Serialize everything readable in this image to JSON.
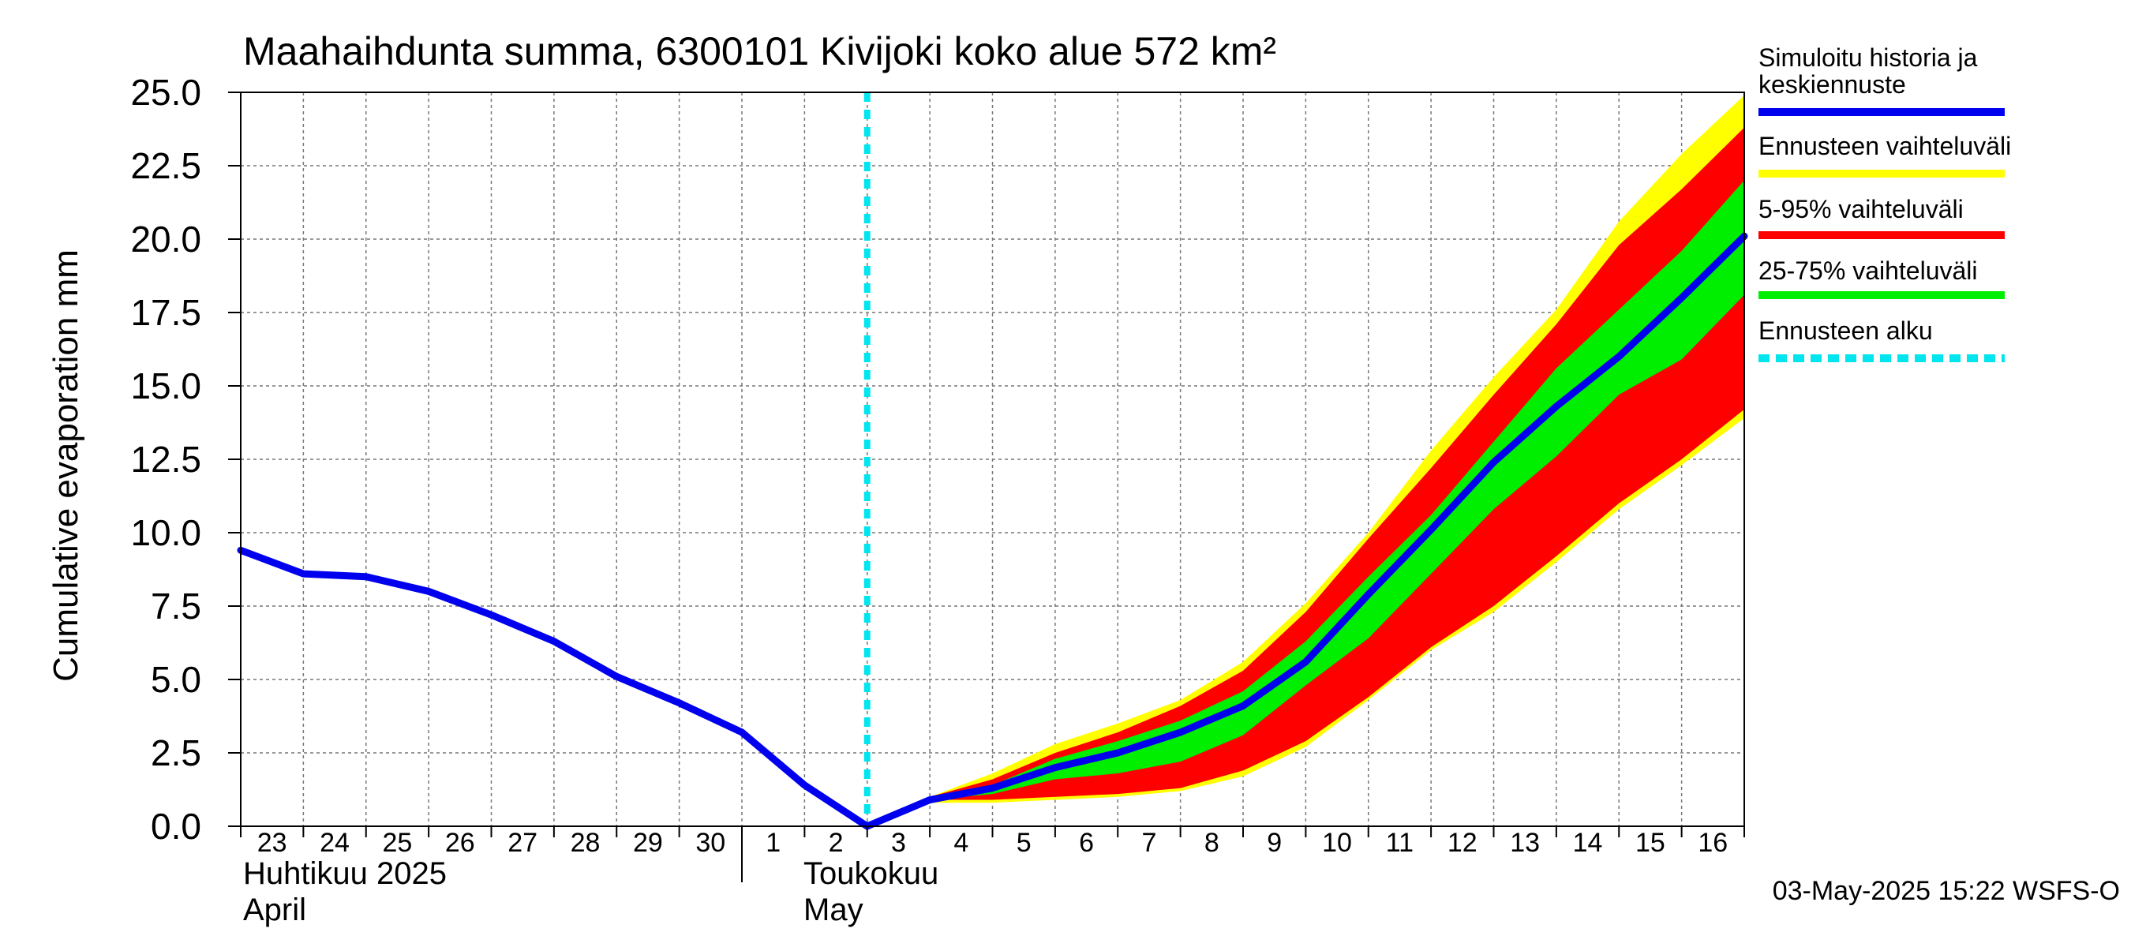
{
  "chart_data": {
    "type": "area",
    "title": "Maahaihdunta summa, 6300101 Kivijoki koko alue 572 km²",
    "ylabel": "Cumulative evaporation   mm",
    "ylim": [
      0,
      25
    ],
    "yticks": [
      "0.0",
      "2.5",
      "5.0",
      "7.5",
      "10.0",
      "12.5",
      "15.0",
      "17.5",
      "20.0",
      "22.5",
      "25.0"
    ],
    "xlim": [
      0,
      24
    ],
    "x_tick_labels": [
      "23",
      "24",
      "25",
      "26",
      "27",
      "28",
      "29",
      "30",
      "1",
      "2",
      "3",
      "4",
      "5",
      "6",
      "7",
      "8",
      "9",
      "10",
      "11",
      "12",
      "13",
      "14",
      "15",
      "16"
    ],
    "month_labels": {
      "april_fi": "Huhtikuu  2025",
      "april_en": "April",
      "may_fi": "Toukokuu",
      "may_en": "May"
    },
    "forecast_start_x": 10,
    "grid": true,
    "legend_position": "right",
    "series": [
      {
        "name": "Simuloitu historia ja keskiennuste",
        "kind": "line",
        "color": "#0000ee",
        "x": [
          0,
          1,
          2,
          3,
          4,
          5,
          6,
          7,
          8,
          9,
          10,
          11,
          12,
          13,
          14,
          15,
          16,
          17,
          18,
          19,
          20,
          21,
          22,
          23,
          24
        ],
        "y": [
          9.4,
          8.6,
          8.5,
          8.0,
          7.2,
          6.3,
          5.1,
          4.2,
          3.2,
          1.4,
          0.0,
          0.9,
          1.3,
          2.0,
          2.5,
          3.2,
          4.1,
          5.6,
          7.9,
          10.1,
          12.4,
          14.3,
          16.0,
          18.0,
          20.1
        ]
      },
      {
        "name": "Ennusteen vaihteluväli",
        "kind": "band",
        "color": "#ffff00",
        "x": [
          11,
          12,
          13,
          14,
          15,
          16,
          17,
          18,
          19,
          20,
          21,
          22,
          23,
          24
        ],
        "upper": [
          1.0,
          1.8,
          2.8,
          3.5,
          4.3,
          5.6,
          7.6,
          10.0,
          12.8,
          15.3,
          17.6,
          20.6,
          22.9,
          24.9
        ],
        "lower": [
          0.8,
          0.8,
          0.9,
          1.0,
          1.2,
          1.7,
          2.7,
          4.3,
          6.0,
          7.3,
          9.0,
          10.8,
          12.3,
          13.9
        ]
      },
      {
        "name": "5-95% vaihteluväli",
        "kind": "band",
        "color": "#ff0000",
        "x": [
          11,
          12,
          13,
          14,
          15,
          16,
          17,
          18,
          19,
          20,
          21,
          22,
          23,
          24
        ],
        "upper": [
          1.0,
          1.6,
          2.5,
          3.2,
          4.1,
          5.3,
          7.3,
          9.8,
          12.2,
          14.7,
          17.1,
          19.8,
          21.7,
          23.8
        ],
        "lower": [
          0.9,
          0.9,
          1.0,
          1.1,
          1.3,
          1.9,
          2.9,
          4.4,
          6.1,
          7.5,
          9.2,
          11.0,
          12.5,
          14.2
        ]
      },
      {
        "name": "25-75% vaihteluväli",
        "kind": "band",
        "color": "#00ee00",
        "x": [
          11,
          12,
          13,
          14,
          15,
          16,
          17,
          18,
          19,
          20,
          21,
          22,
          23,
          24
        ],
        "upper": [
          0.95,
          1.4,
          2.3,
          2.9,
          3.6,
          4.6,
          6.3,
          8.5,
          10.6,
          13.1,
          15.6,
          17.6,
          19.6,
          22.0
        ],
        "lower": [
          0.9,
          1.1,
          1.6,
          1.8,
          2.2,
          3.1,
          4.8,
          6.4,
          8.6,
          10.8,
          12.6,
          14.7,
          15.9,
          18.1
        ]
      },
      {
        "name": "Ennusteen alku",
        "kind": "vline",
        "color": "#00e5ee",
        "x_value": 10
      }
    ],
    "footer": "03-May-2025 15:22 WSFS-O"
  }
}
